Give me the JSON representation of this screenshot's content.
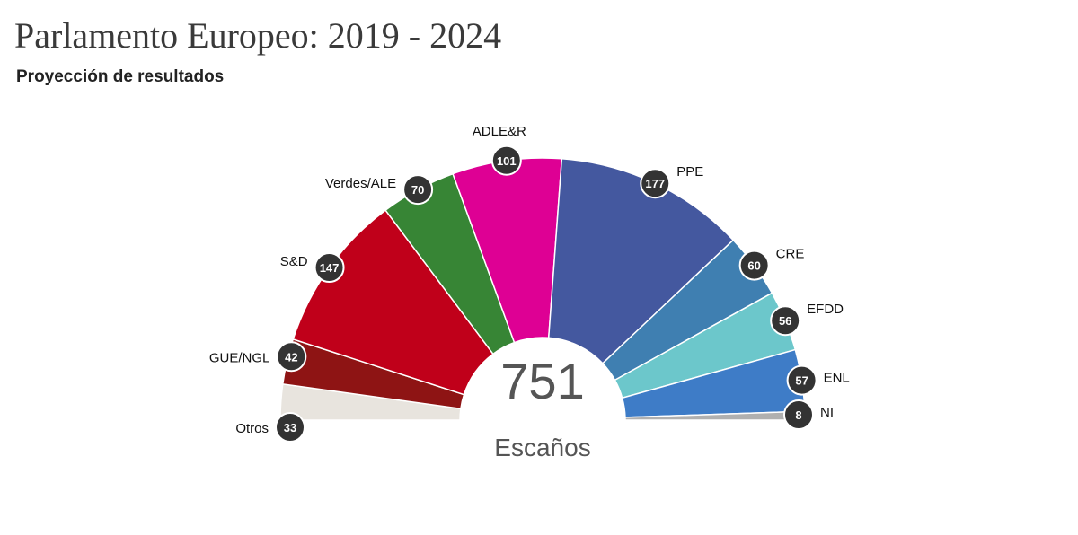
{
  "header": {
    "title": "Parlamento Europeo: 2019 - 2024",
    "subtitle": "Proyección de resultados"
  },
  "chart_data": {
    "type": "pie",
    "subtype": "parliament-semicircle",
    "title": "Parlamento Europeo: 2019 - 2024",
    "subtitle": "Proyección de resultados",
    "total": 751,
    "total_label": "Escaños",
    "series": [
      {
        "name": "Otros",
        "value": 33,
        "color": "#e8e4de"
      },
      {
        "name": "GUE/NGL",
        "value": 42,
        "color": "#8e1414"
      },
      {
        "name": "S&D",
        "value": 147,
        "color": "#c0001a"
      },
      {
        "name": "Verdes/ALE",
        "value": 70,
        "color": "#378535"
      },
      {
        "name": "ADLE&R",
        "value": 101,
        "color": "#de0094"
      },
      {
        "name": "PPE",
        "value": 177,
        "color": "#44589f"
      },
      {
        "name": "CRE",
        "value": 60,
        "color": "#3f7fb1"
      },
      {
        "name": "EFDD",
        "value": 56,
        "color": "#6cc7cb"
      },
      {
        "name": "ENL",
        "value": 57,
        "color": "#3e7cc7"
      },
      {
        "name": "NI",
        "value": 8,
        "color": "#b0b0b0"
      }
    ]
  }
}
